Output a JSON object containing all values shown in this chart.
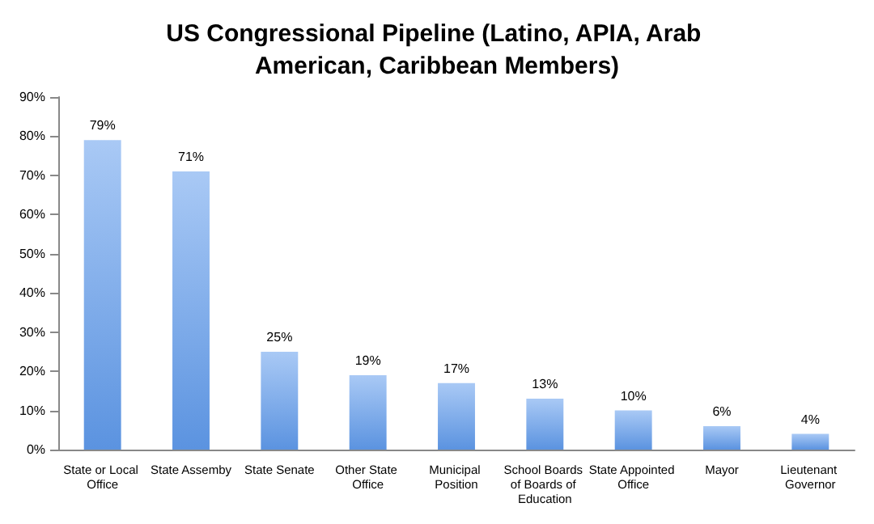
{
  "chart_data": {
    "type": "bar",
    "title": "US Congressional Pipeline (Latino, APIA, Arab American, Caribbean Members)",
    "categories": [
      "State or Local Office",
      "State Assemby",
      "State Senate",
      "Other State Office",
      "Municipal Position",
      "School Boards of Boards of Education",
      "State Appointed Office",
      "Mayor",
      "Lieutenant Governor"
    ],
    "values": [
      79,
      71,
      25,
      19,
      17,
      13,
      10,
      6,
      4
    ],
    "value_labels": [
      "79%",
      "71%",
      "25%",
      "19%",
      "17%",
      "13%",
      "10%",
      "6%",
      "4%"
    ],
    "color": "#5b93e0",
    "ylim": [
      0,
      90
    ],
    "yticks": [
      {
        "value": 0,
        "label": "0%"
      },
      {
        "value": 10,
        "label": "10%"
      },
      {
        "value": 20,
        "label": "20%"
      },
      {
        "value": 30,
        "label": "30%"
      },
      {
        "value": 40,
        "label": "40%"
      },
      {
        "value": 50,
        "label": "50%"
      },
      {
        "value": 60,
        "label": "60%"
      },
      {
        "value": 70,
        "label": "70%"
      },
      {
        "value": 80,
        "label": "80%"
      },
      {
        "value": 90,
        "label": "90%"
      }
    ],
    "grid": false
  }
}
